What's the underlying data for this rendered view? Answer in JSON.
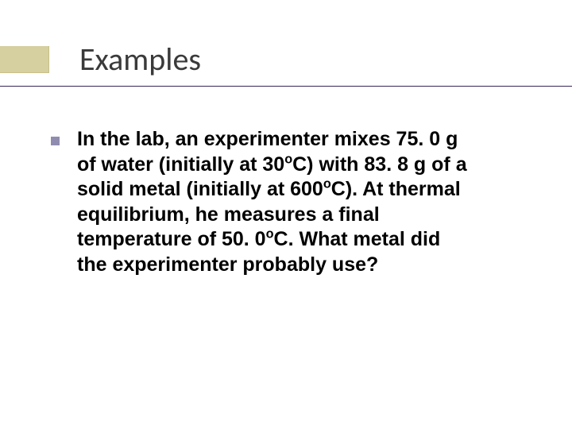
{
  "slide": {
    "title": "Examples",
    "accent_color": "#d6cf9f",
    "underline_color": "#39265a",
    "bullet_color": "#908cb0",
    "title_fontsize": 40,
    "body_fontsize": 25,
    "body_fontweight": 700
  },
  "content": {
    "line1": "In the lab, an experimenter mixes 75. 0 g",
    "line2a": "of water (initially at 30",
    "deg1": "o",
    "line2b": "C) with 83. 8 g of a",
    "line3a": "solid metal (initially at 600",
    "deg2": "o",
    "line3b": "C). At thermal",
    "line4": "equilibrium, he measures a final",
    "line5a": "temperature of 50. 0",
    "deg3": "o",
    "line5b": "C. What metal did",
    "line6": "the experimenter probably use?"
  }
}
